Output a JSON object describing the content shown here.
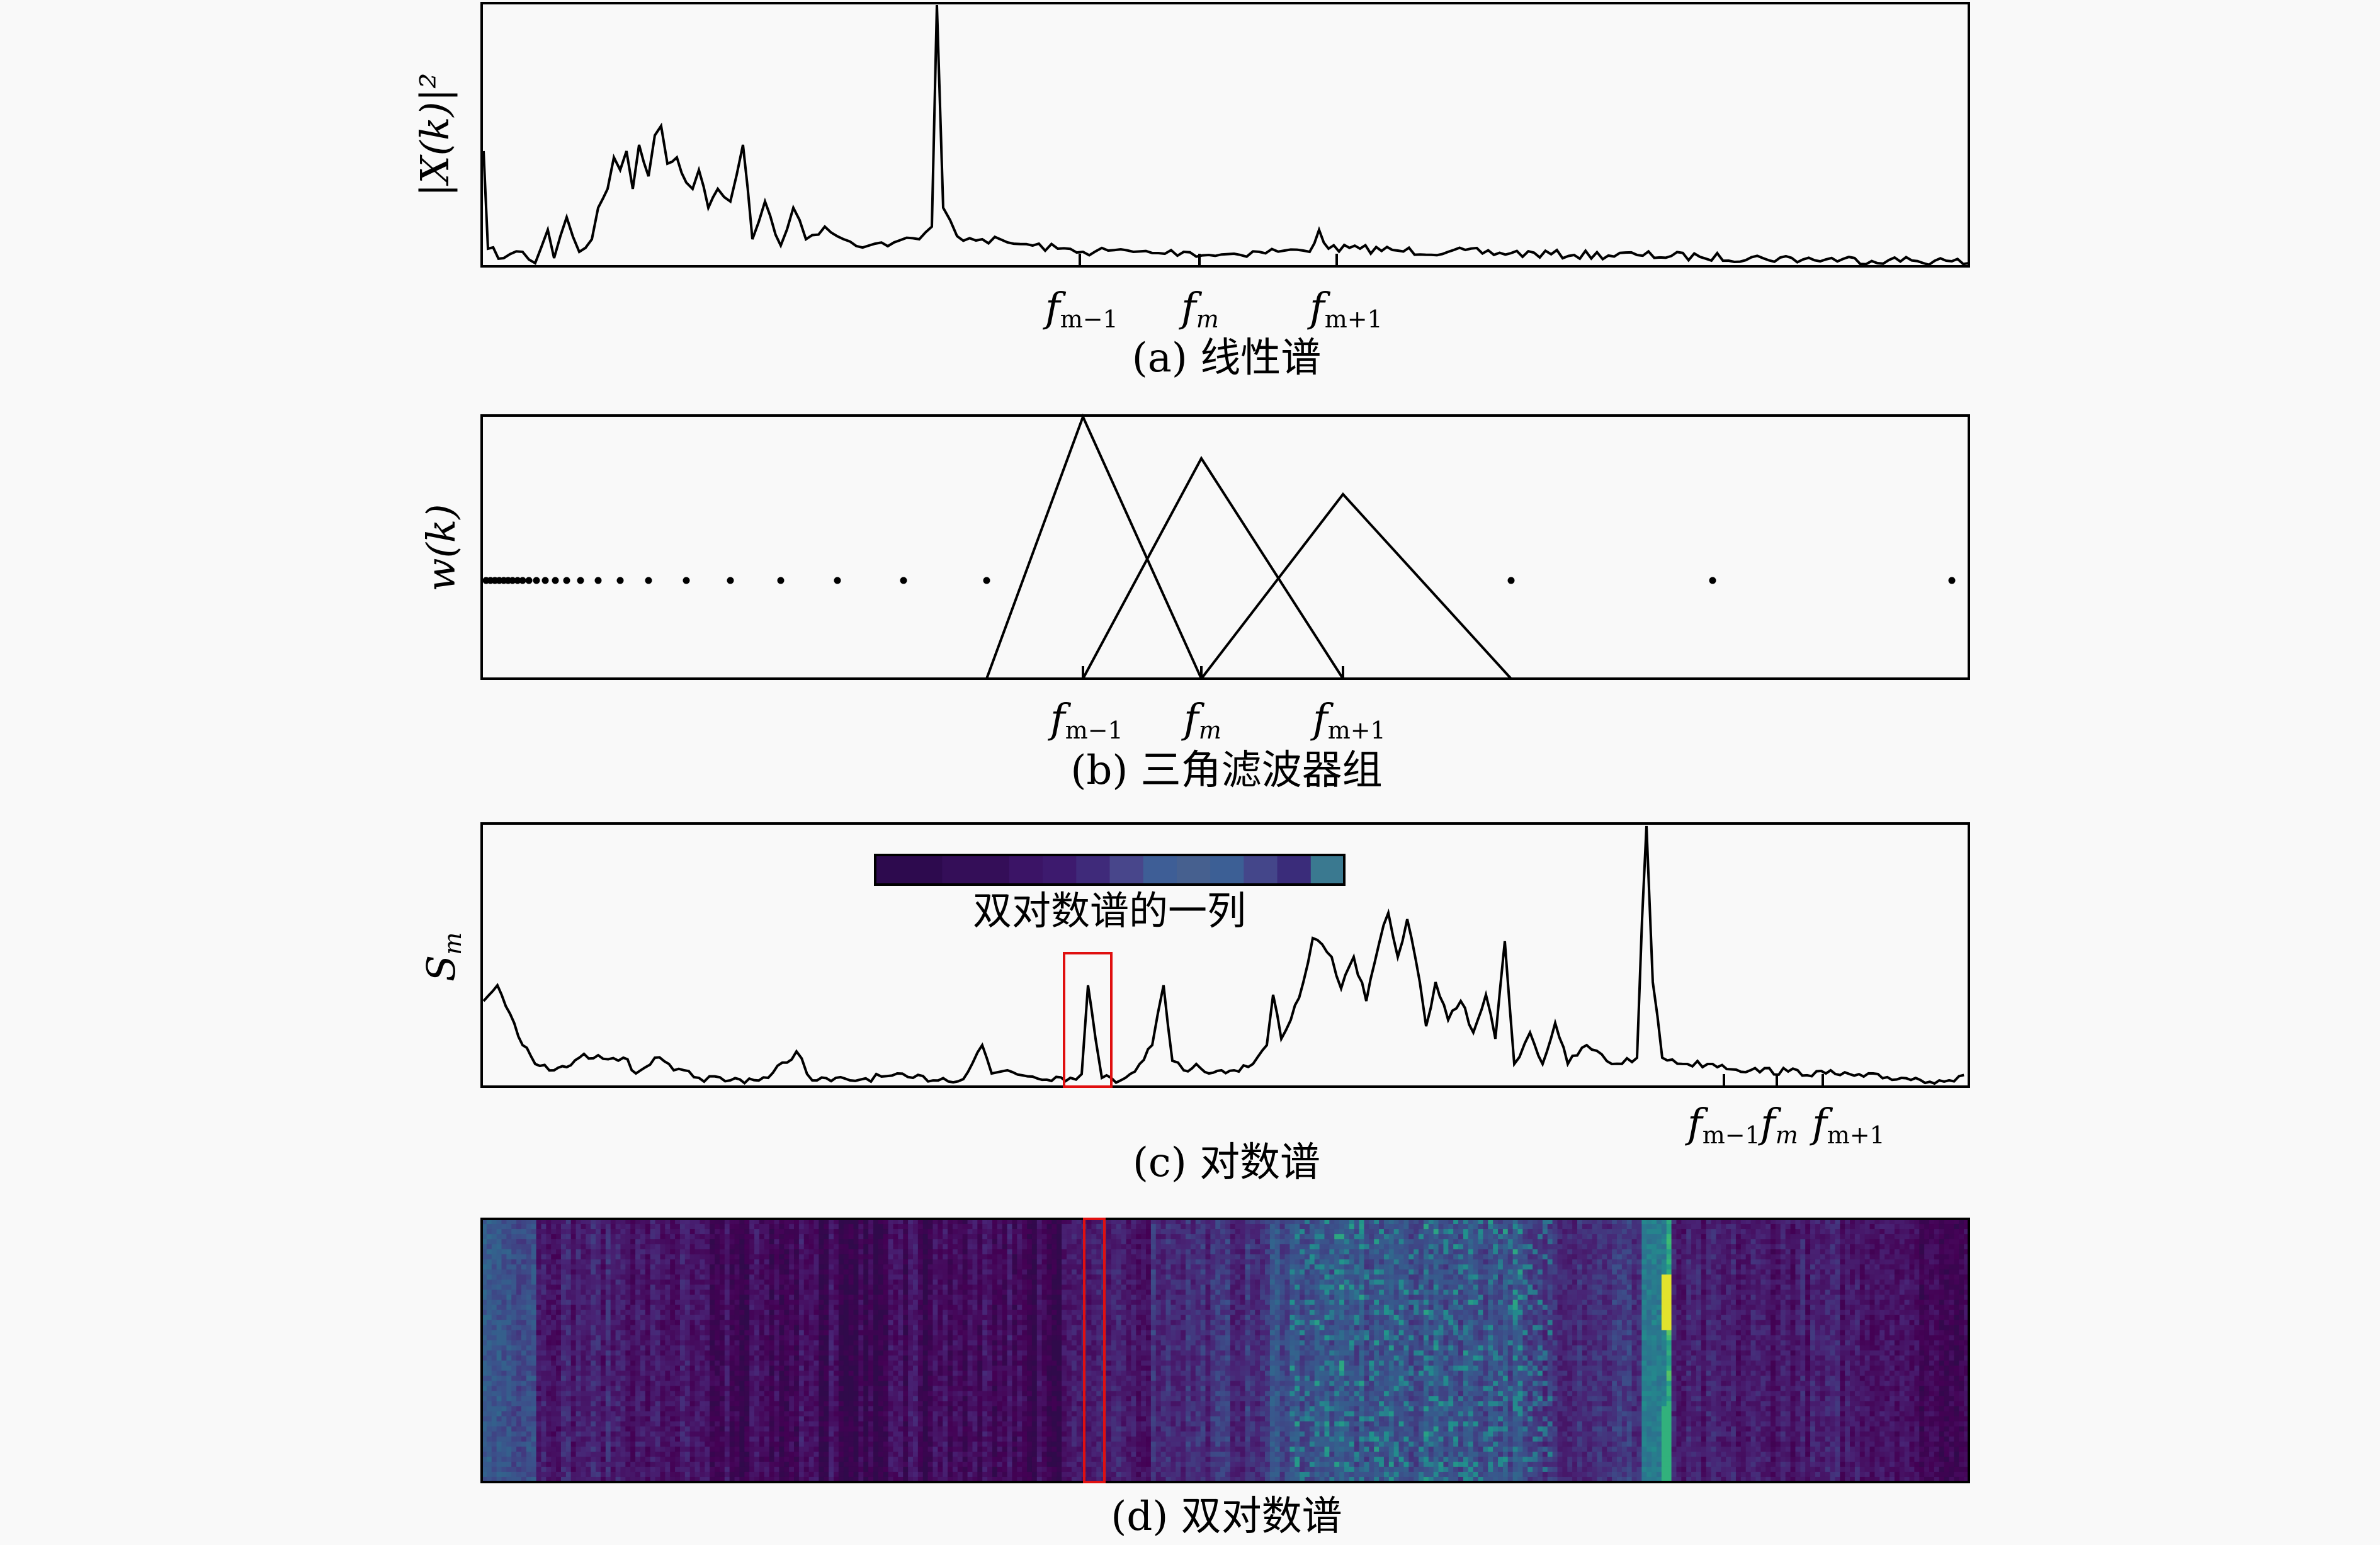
{
  "panels": {
    "a": {
      "ylabel": "|X(k)|²",
      "caption": "(a) 线性谱",
      "ticks": [
        {
          "main": "f",
          "sub": "m−1"
        },
        {
          "main": "f",
          "sub": "m"
        },
        {
          "main": "f",
          "sub": "m+1"
        }
      ]
    },
    "b": {
      "ylabel": "w(k)",
      "caption": "(b) 三角滤波器组",
      "ticks": [
        {
          "main": "f",
          "sub": "m−1"
        },
        {
          "main": "f",
          "sub": "m"
        },
        {
          "main": "f",
          "sub": "m+1"
        }
      ]
    },
    "c": {
      "ylabel_main": "S",
      "ylabel_sub": "m",
      "caption": "(c) 对数谱",
      "inset_label": "双对数谱的一列",
      "ticks": [
        {
          "main": "f",
          "sub": "m−1"
        },
        {
          "main": "f",
          "sub": "m"
        },
        {
          "main": "f",
          "sub": "m+1"
        }
      ]
    },
    "d": {
      "caption": "(d) 双对数谱"
    }
  },
  "colors": {
    "line": "#000000",
    "highlight": "#e01010",
    "viridis_low": "#440154",
    "viridis_mid": "#3b528b",
    "viridis_teal": "#21918c",
    "viridis_green": "#5ec962",
    "viridis_high": "#fde725"
  }
}
